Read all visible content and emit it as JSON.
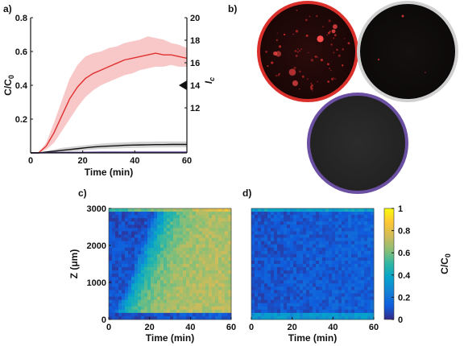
{
  "panel_labels": {
    "a": "a)",
    "b": "b)",
    "c": "c)",
    "d": "d)"
  },
  "colors": {
    "red": "#e03030",
    "red_band": "#f4a3a3",
    "black": "#111111",
    "purple": "#4b2d8c",
    "gray_band": "#c8c8c8",
    "dish_red_ring": "#d9302c",
    "dish_gray_ring": "#d0d0d0",
    "dish_purple_ring": "#6a4fa3"
  },
  "colorbar": {
    "label_base": "C/C",
    "label_sub": "0",
    "ticks": [
      "0",
      "0.2",
      "0.4",
      "0.6",
      "0.8",
      "1"
    ],
    "colormap": "parula"
  },
  "images": {
    "dish_top_left": "red fluorescence dish with bright spots",
    "dish_top_right": "dark dish with a few faint spots",
    "dish_bottom": "dark gray dish"
  },
  "chart_data": [
    {
      "id": "a",
      "type": "line",
      "xlabel": "Time (min)",
      "ylabel_base": "C/C",
      "ylabel_sub": "0",
      "y2label_base": "I",
      "y2label_sub": "c",
      "xlim": [
        0,
        60
      ],
      "ylim": [
        0,
        0.8
      ],
      "y2lim": [
        8,
        20
      ],
      "xticks": [
        "0",
        "20",
        "40",
        "60"
      ],
      "yticks": [
        "0.2",
        "0.4",
        "0.6",
        "0.8"
      ],
      "y2ticks": [
        "12",
        "14",
        "16",
        "18",
        "20"
      ],
      "marker": {
        "axis": "right",
        "value": 14,
        "shape": "left-pointing triangle"
      },
      "series": [
        {
          "color": "red",
          "x": [
            0,
            3,
            6,
            9,
            12,
            15,
            18,
            21,
            24,
            27,
            30,
            33,
            36,
            39,
            42,
            45,
            48,
            51,
            54,
            57,
            60
          ],
          "y": [
            0,
            0,
            0.04,
            0.12,
            0.22,
            0.32,
            0.39,
            0.44,
            0.47,
            0.49,
            0.51,
            0.53,
            0.55,
            0.56,
            0.57,
            0.58,
            0.59,
            0.58,
            0.58,
            0.57,
            0.56
          ],
          "lower": [
            0,
            0,
            0.02,
            0.06,
            0.13,
            0.2,
            0.27,
            0.33,
            0.37,
            0.4,
            0.42,
            0.44,
            0.46,
            0.47,
            0.49,
            0.5,
            0.51,
            0.51,
            0.52,
            0.51,
            0.51
          ],
          "upper": [
            0,
            0,
            0.06,
            0.18,
            0.31,
            0.44,
            0.52,
            0.57,
            0.59,
            0.6,
            0.62,
            0.63,
            0.65,
            0.66,
            0.67,
            0.69,
            0.68,
            0.67,
            0.65,
            0.64,
            0.62
          ]
        },
        {
          "color": "black",
          "x": [
            0,
            3,
            6,
            9,
            12,
            15,
            18,
            21,
            24,
            27,
            30,
            33,
            36,
            39,
            42,
            45,
            48,
            51,
            54,
            57,
            60
          ],
          "y": [
            0,
            0,
            0.005,
            0.01,
            0.015,
            0.02,
            0.025,
            0.03,
            0.035,
            0.038,
            0.04,
            0.042,
            0.045,
            0.046,
            0.047,
            0.048,
            0.049,
            0.049,
            0.05,
            0.05,
            0.05
          ],
          "lower": [
            0,
            0,
            0.0,
            0.0,
            0.005,
            0.008,
            0.012,
            0.016,
            0.02,
            0.023,
            0.025,
            0.026,
            0.028,
            0.029,
            0.03,
            0.031,
            0.032,
            0.032,
            0.033,
            0.033,
            0.033
          ],
          "upper": [
            0,
            0,
            0.01,
            0.02,
            0.03,
            0.035,
            0.04,
            0.045,
            0.05,
            0.055,
            0.058,
            0.06,
            0.062,
            0.064,
            0.066,
            0.066,
            0.067,
            0.068,
            0.068,
            0.068,
            0.068
          ]
        },
        {
          "color": "purple",
          "x": [
            0,
            10,
            20,
            30,
            40,
            50,
            60
          ],
          "y": [
            0,
            0.002,
            0.003,
            0.004,
            0.004,
            0.004,
            0.004
          ]
        }
      ]
    },
    {
      "id": "c",
      "type": "heatmap",
      "xlabel": "Time (min)",
      "ylabel": "Z (μm)",
      "xlim": [
        0,
        60
      ],
      "ylim": [
        0,
        3000
      ],
      "xticks": [
        "0",
        "20",
        "40",
        "60"
      ],
      "yticks": [
        "0",
        "1000",
        "2000",
        "3000"
      ],
      "note": "concentration front propagates upward over time; near-bottom layer bright early",
      "pattern": "front"
    },
    {
      "id": "d",
      "type": "heatmap",
      "xlabel": "Time (min)",
      "xlim": [
        0,
        60
      ],
      "ylim": [
        0,
        3000
      ],
      "xticks": [
        "0",
        "20",
        "40",
        "60"
      ],
      "pattern": "flat-low"
    }
  ]
}
